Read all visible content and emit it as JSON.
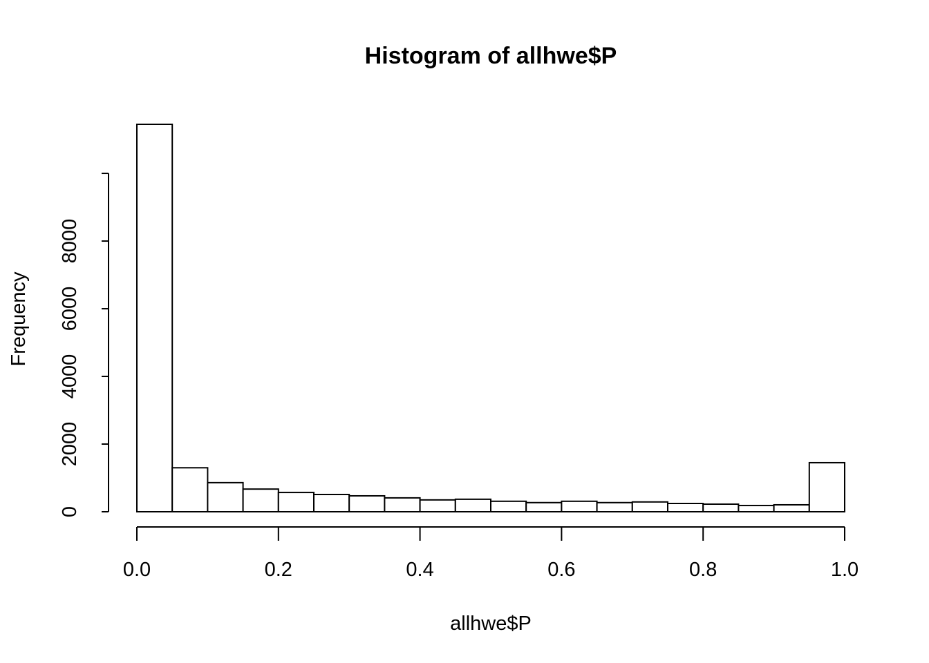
{
  "chart_data": {
    "type": "histogram",
    "title": "Histogram of allhwe$P",
    "x_label": "allhwe$P",
    "y_label": "Frequency",
    "bins": [
      0,
      0.05,
      0.1,
      0.15,
      0.2,
      0.25,
      0.3,
      0.35,
      0.4,
      0.45,
      0.5,
      0.55,
      0.6,
      0.65,
      0.7,
      0.75,
      0.8,
      0.85,
      0.9,
      0.95,
      1.0
    ],
    "values": [
      11450,
      1300,
      860,
      670,
      570,
      510,
      470,
      410,
      350,
      370,
      310,
      270,
      310,
      270,
      290,
      245,
      225,
      185,
      205,
      1450
    ],
    "color": "#ffffff",
    "xlim": [
      0,
      1
    ],
    "xticks": [
      {
        "value": 0,
        "label": "0.0"
      },
      0.2,
      0.4,
      0.6,
      0.8,
      {
        "value": 1,
        "label": "1.0"
      }
    ],
    "ylim": [
      0,
      11450
    ],
    "yticks": [
      0,
      2000,
      4000,
      6000,
      8000,
      {
        "value": 10000,
        "label": null
      }
    ],
    "grid": false
  }
}
